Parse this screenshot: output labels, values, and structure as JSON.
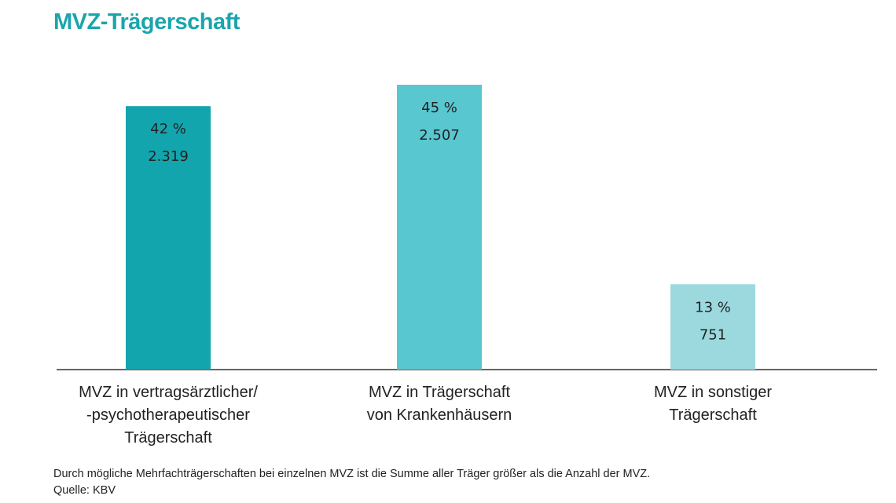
{
  "chart_data": {
    "type": "bar",
    "title": "MVZ-Trägerschaft",
    "categories": [
      "MVZ in vertragsärztlicher/\n-psychotherapeutischer\nTrägerschaft",
      "MVZ in Trägerschaft\nvon Krankenhäusern",
      "MVZ in sonstiger\nTrägerschaft"
    ],
    "values": [
      2319,
      2507,
      751
    ],
    "value_labels": [
      "2.319",
      "2.507",
      "751"
    ],
    "percentages": [
      42,
      45,
      13
    ],
    "percentage_labels": [
      "42 %",
      "45 %",
      "13 %"
    ],
    "colors": [
      "#13a5ad",
      "#58c7d0",
      "#9bd9df"
    ],
    "note": "Durch mögliche Mehrfachträgerschaften bei einzelnen MVZ ist die Summe aller Träger größer als die Anzahl der MVZ.",
    "source": "Quelle: KBV"
  }
}
